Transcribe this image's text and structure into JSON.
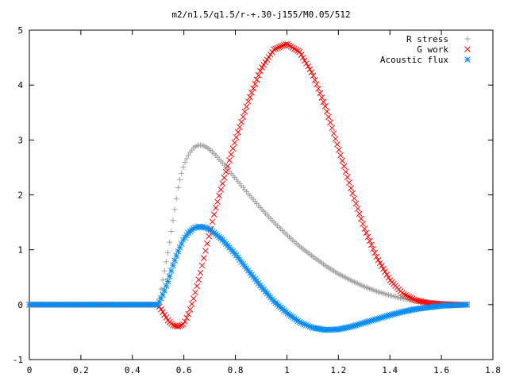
{
  "chart_data": {
    "type": "scatter",
    "title": "m2/n1.5/q1.5/r-+.30-j155/M0.05/512",
    "xlabel": "",
    "ylabel": "",
    "xlim": [
      0,
      1.8
    ],
    "ylim": [
      -1,
      5
    ],
    "xticks": [
      "0",
      "0.2",
      "0.4",
      "0.6",
      "0.8",
      "1",
      "1.2",
      "1.4",
      "1.6",
      "1.8"
    ],
    "yticks": [
      "-1",
      "0",
      "1",
      "2",
      "3",
      "4",
      "5"
    ],
    "grid": false,
    "legend_position": "top-right",
    "series": [
      {
        "name": "R stress",
        "marker": "plus",
        "color": "#a0a0a0",
        "x": [
          0.0,
          0.1,
          0.2,
          0.3,
          0.4,
          0.5,
          0.52,
          0.54,
          0.56,
          0.58,
          0.6,
          0.62,
          0.64,
          0.66,
          0.68,
          0.7,
          0.72,
          0.75,
          0.8,
          0.85,
          0.9,
          0.95,
          1.0,
          1.05,
          1.1,
          1.15,
          1.2,
          1.25,
          1.3,
          1.35,
          1.4,
          1.45,
          1.5,
          1.55,
          1.6,
          1.65,
          1.7
        ],
        "y": [
          0,
          0,
          0,
          0,
          0,
          0,
          0.5,
          1.0,
          1.6,
          2.2,
          2.55,
          2.75,
          2.87,
          2.91,
          2.89,
          2.83,
          2.74,
          2.58,
          2.3,
          2.02,
          1.75,
          1.5,
          1.27,
          1.06,
          0.88,
          0.71,
          0.56,
          0.44,
          0.33,
          0.24,
          0.17,
          0.11,
          0.07,
          0.04,
          0.02,
          0.01,
          0.0
        ]
      },
      {
        "name": "G work",
        "marker": "cross",
        "color": "#ff0000",
        "x": [
          0.0,
          0.1,
          0.2,
          0.3,
          0.4,
          0.5,
          0.52,
          0.54,
          0.56,
          0.58,
          0.6,
          0.62,
          0.64,
          0.66,
          0.68,
          0.7,
          0.72,
          0.75,
          0.8,
          0.85,
          0.9,
          0.95,
          1.0,
          1.05,
          1.1,
          1.15,
          1.2,
          1.25,
          1.3,
          1.35,
          1.4,
          1.45,
          1.5,
          1.55,
          1.6,
          1.65,
          1.7
        ],
        "y": [
          0,
          0,
          0,
          0,
          0,
          0,
          -0.15,
          -0.3,
          -0.38,
          -0.4,
          -0.35,
          -0.15,
          0.15,
          0.5,
          0.9,
          1.3,
          1.7,
          2.2,
          3.0,
          3.7,
          4.3,
          4.65,
          4.75,
          4.6,
          4.2,
          3.6,
          2.85,
          2.1,
          1.4,
          0.85,
          0.45,
          0.2,
          0.08,
          0.03,
          0.01,
          0.0,
          0.0
        ]
      },
      {
        "name": "Acoustic flux",
        "marker": "star",
        "color": "#0a8cf0",
        "x": [
          0.0,
          0.1,
          0.2,
          0.3,
          0.4,
          0.5,
          0.52,
          0.54,
          0.56,
          0.58,
          0.6,
          0.62,
          0.64,
          0.66,
          0.68,
          0.7,
          0.72,
          0.75,
          0.8,
          0.85,
          0.9,
          0.95,
          1.0,
          1.05,
          1.1,
          1.15,
          1.2,
          1.25,
          1.3,
          1.35,
          1.4,
          1.45,
          1.5,
          1.55,
          1.6,
          1.65,
          1.7
        ],
        "y": [
          0,
          0,
          0,
          0,
          0,
          0,
          0.2,
          0.45,
          0.75,
          1.0,
          1.2,
          1.32,
          1.4,
          1.42,
          1.41,
          1.37,
          1.3,
          1.18,
          0.92,
          0.62,
          0.33,
          0.06,
          -0.15,
          -0.32,
          -0.42,
          -0.46,
          -0.45,
          -0.4,
          -0.33,
          -0.26,
          -0.19,
          -0.13,
          -0.08,
          -0.05,
          -0.02,
          -0.01,
          0.0
        ]
      }
    ]
  }
}
